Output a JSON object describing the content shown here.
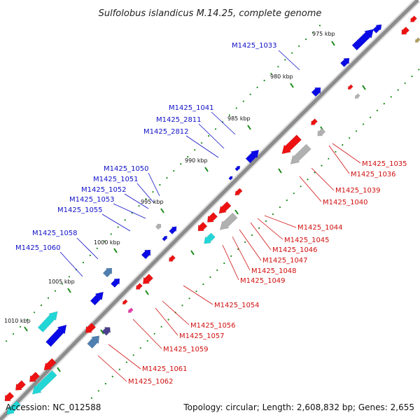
{
  "title": "Sulfolobus islandicus M.14.25, complete genome",
  "accession": "Accession: NC_012588",
  "summary": "Topology: circular; Length: 2,608,832 bp; Genes: 2,655",
  "colors": {
    "backbone": "#8c8c8c",
    "forward_gene": "#0a0ae6",
    "reverse_gene": "#ee1111",
    "forward_label": "#1010c8",
    "reverse_label": "#d01010",
    "tick": "#1a8a1a",
    "cyan_gene": "#22d6d6",
    "steel_gene": "#4f7fb0",
    "purple_gene": "#4a3f8c",
    "gray_gene": "#b0b0b0",
    "magenta_gene": "#e83aa8",
    "khaki_gene": "#b0a060"
  },
  "kbp_ticks": [
    "975 kbp",
    "980 kbp",
    "985 kbp",
    "990 kbp",
    "995 kbp",
    "1000 kbp",
    "1005 kbp",
    "1010 kbp"
  ],
  "forward_labels": [
    "M1425_1033",
    "M1425_1041",
    "M1425_2811",
    "M1425_2812",
    "M1425_1050",
    "M1425_1051",
    "M1425_1052",
    "M1425_1053",
    "M1425_1055",
    "M1425_1058",
    "M1425_1060"
  ],
  "reverse_labels": [
    "M1425_1035",
    "M1425_1036",
    "M1425_1039",
    "M1425_1040",
    "M1425_1044",
    "M1425_1045",
    "M1425_1046",
    "M1425_1047",
    "M1425_1048",
    "M1425_1049",
    "M1425_1054",
    "M1425_1056",
    "M1425_1057",
    "M1425_1059",
    "M1425_1061",
    "M1425_1062"
  ]
}
